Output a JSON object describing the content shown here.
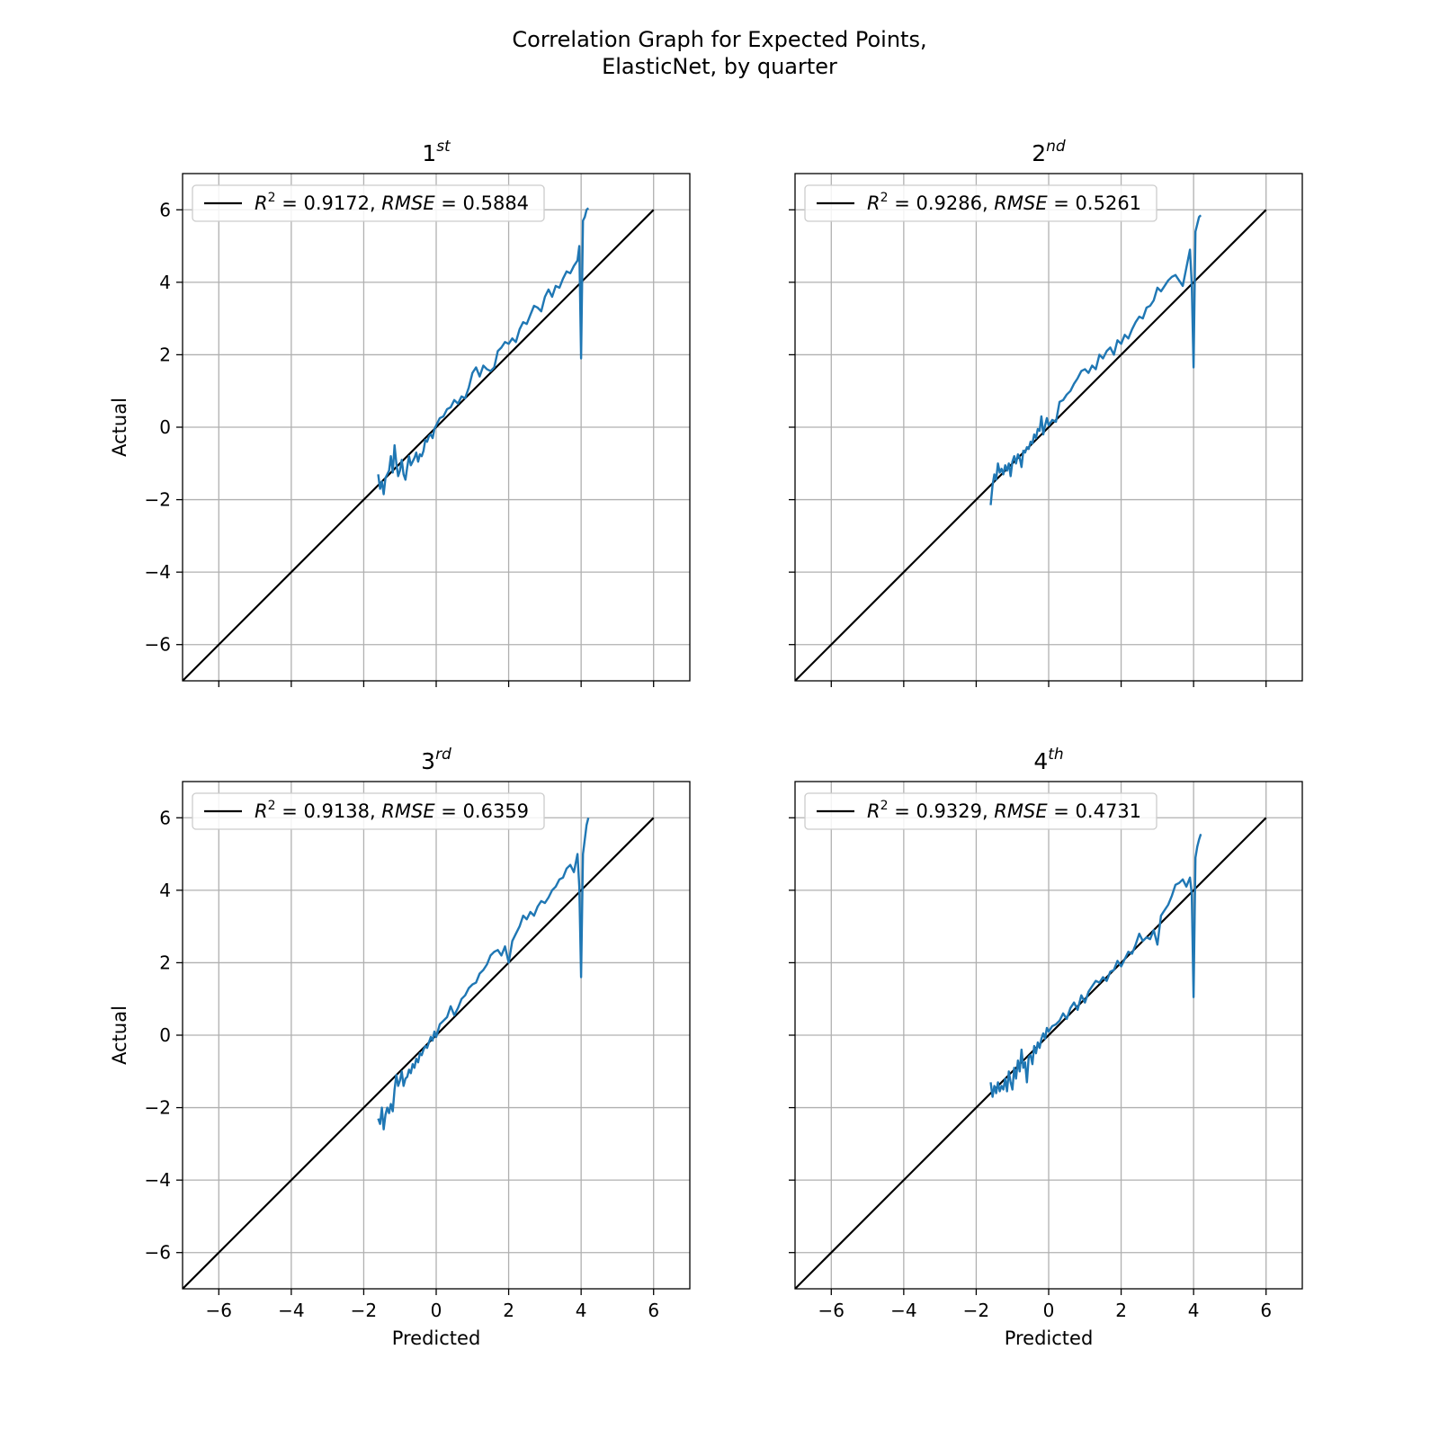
{
  "figure": {
    "title_line1": "Correlation Graph for Expected Points,",
    "title_line2": "ElasticNet, by quarter"
  },
  "chart_data": [
    {
      "type": "line",
      "title": "1st",
      "title_main": "1",
      "title_sup": "st",
      "xlabel": "",
      "ylabel": "Actual",
      "xlim": [
        -7,
        7
      ],
      "ylim": [
        -7,
        7
      ],
      "ticks": [
        -6,
        -4,
        -2,
        0,
        2,
        4,
        6
      ],
      "show_xticklabels": false,
      "show_yticklabels": true,
      "grid": true,
      "legend": {
        "position": "top-left",
        "label": "R^2 = 0.9172, RMSE = 0.5884",
        "r2": "0.9172",
        "rmse": "0.5884"
      },
      "series": [
        {
          "role": "reference",
          "color": "#000000",
          "x": [
            -7,
            6
          ],
          "y": [
            -7,
            6
          ]
        },
        {
          "role": "observed",
          "color": "#1f77b4",
          "x": [
            -1.6,
            -1.55,
            -1.5,
            -1.45,
            -1.4,
            -1.35,
            -1.3,
            -1.25,
            -1.2,
            -1.15,
            -1.1,
            -1.05,
            -1.0,
            -0.95,
            -0.9,
            -0.85,
            -0.8,
            -0.75,
            -0.7,
            -0.65,
            -0.6,
            -0.55,
            -0.5,
            -0.45,
            -0.4,
            -0.35,
            -0.3,
            -0.25,
            -0.2,
            -0.15,
            -0.1,
            -0.05,
            0.0,
            0.1,
            0.2,
            0.3,
            0.4,
            0.5,
            0.6,
            0.7,
            0.8,
            0.9,
            1.0,
            1.1,
            1.2,
            1.3,
            1.4,
            1.5,
            1.6,
            1.7,
            1.8,
            1.9,
            2.0,
            2.1,
            2.2,
            2.3,
            2.4,
            2.5,
            2.6,
            2.7,
            2.8,
            2.9,
            3.0,
            3.1,
            3.2,
            3.3,
            3.4,
            3.5,
            3.6,
            3.7,
            3.8,
            3.9,
            3.95,
            4.0,
            4.05,
            4.1,
            4.15,
            4.2
          ],
          "y": [
            -1.3,
            -1.7,
            -1.5,
            -1.85,
            -1.4,
            -1.3,
            -1.2,
            -0.8,
            -1.25,
            -0.5,
            -1.0,
            -1.35,
            -1.2,
            -0.9,
            -1.3,
            -1.45,
            -1.1,
            -0.8,
            -1.05,
            -0.95,
            -0.85,
            -0.7,
            -0.95,
            -0.75,
            -0.8,
            -0.65,
            -0.35,
            -0.4,
            -0.25,
            -0.2,
            -0.3,
            -0.05,
            0.05,
            0.25,
            0.3,
            0.5,
            0.55,
            0.75,
            0.65,
            0.85,
            0.8,
            1.1,
            1.5,
            1.65,
            1.4,
            1.7,
            1.6,
            1.55,
            1.65,
            2.1,
            2.2,
            2.35,
            2.3,
            2.45,
            2.35,
            2.7,
            2.9,
            2.85,
            3.1,
            3.35,
            3.3,
            3.2,
            3.6,
            3.8,
            3.6,
            3.9,
            3.85,
            4.1,
            4.3,
            4.25,
            4.45,
            4.6,
            5.0,
            1.9,
            5.7,
            5.8,
            6.0,
            6.05
          ]
        }
      ]
    },
    {
      "type": "line",
      "title": "2nd",
      "title_main": "2",
      "title_sup": "nd",
      "xlabel": "",
      "ylabel": "",
      "xlim": [
        -7,
        7
      ],
      "ylim": [
        -7,
        7
      ],
      "ticks": [
        -6,
        -4,
        -2,
        0,
        2,
        4,
        6
      ],
      "show_xticklabels": false,
      "show_yticklabels": false,
      "grid": true,
      "legend": {
        "position": "top-left",
        "label": "R^2 = 0.9286, RMSE = 0.5261",
        "r2": "0.9286",
        "rmse": "0.5261"
      },
      "series": [
        {
          "role": "reference",
          "color": "#000000",
          "x": [
            -7,
            6
          ],
          "y": [
            -7,
            6
          ]
        },
        {
          "role": "observed",
          "color": "#1f77b4",
          "x": [
            -1.6,
            -1.55,
            -1.5,
            -1.45,
            -1.4,
            -1.35,
            -1.3,
            -1.25,
            -1.2,
            -1.15,
            -1.1,
            -1.05,
            -1.0,
            -0.95,
            -0.9,
            -0.85,
            -0.8,
            -0.75,
            -0.7,
            -0.65,
            -0.6,
            -0.55,
            -0.5,
            -0.45,
            -0.4,
            -0.35,
            -0.3,
            -0.25,
            -0.2,
            -0.15,
            -0.1,
            -0.05,
            0.0,
            0.1,
            0.2,
            0.3,
            0.4,
            0.5,
            0.6,
            0.7,
            0.8,
            0.9,
            1.0,
            1.1,
            1.2,
            1.3,
            1.4,
            1.5,
            1.6,
            1.7,
            1.8,
            1.9,
            2.0,
            2.1,
            2.2,
            2.3,
            2.4,
            2.5,
            2.6,
            2.7,
            2.8,
            2.9,
            3.0,
            3.1,
            3.2,
            3.3,
            3.4,
            3.5,
            3.6,
            3.7,
            3.8,
            3.9,
            3.95,
            4.0,
            4.05,
            4.1,
            4.15,
            4.2
          ],
          "y": [
            -2.15,
            -1.6,
            -1.3,
            -1.45,
            -1.0,
            -1.25,
            -1.15,
            -1.3,
            -1.05,
            -1.2,
            -1.0,
            -1.35,
            -0.95,
            -0.8,
            -1.0,
            -0.75,
            -0.85,
            -1.1,
            -0.65,
            -0.7,
            -0.55,
            -0.6,
            -0.4,
            -0.45,
            -0.2,
            -0.3,
            -0.05,
            -0.1,
            0.3,
            -0.2,
            0.05,
            0.25,
            0.05,
            0.2,
            0.15,
            0.7,
            0.75,
            0.9,
            1.0,
            1.2,
            1.35,
            1.55,
            1.6,
            1.5,
            1.7,
            1.6,
            2.0,
            1.9,
            2.1,
            2.2,
            2.0,
            2.4,
            2.3,
            2.55,
            2.45,
            2.7,
            2.9,
            3.05,
            3.0,
            3.3,
            3.35,
            3.5,
            3.85,
            3.75,
            3.9,
            4.05,
            4.15,
            4.2,
            4.05,
            3.9,
            4.4,
            4.9,
            3.95,
            1.65,
            5.4,
            5.6,
            5.8,
            5.85
          ]
        }
      ]
    },
    {
      "type": "line",
      "title": "3rd",
      "title_main": "3",
      "title_sup": "rd",
      "xlabel": "Predicted",
      "ylabel": "Actual",
      "xlim": [
        -7,
        7
      ],
      "ylim": [
        -7,
        7
      ],
      "ticks": [
        -6,
        -4,
        -2,
        0,
        2,
        4,
        6
      ],
      "show_xticklabels": true,
      "show_yticklabels": true,
      "grid": true,
      "legend": {
        "position": "top-left",
        "label": "R^2 = 0.9138, RMSE = 0.6359",
        "r2": "0.9138",
        "rmse": "0.6359"
      },
      "series": [
        {
          "role": "reference",
          "color": "#000000",
          "x": [
            -7,
            6
          ],
          "y": [
            -7,
            6
          ]
        },
        {
          "role": "observed",
          "color": "#1f77b4",
          "x": [
            -1.6,
            -1.55,
            -1.5,
            -1.45,
            -1.4,
            -1.35,
            -1.3,
            -1.25,
            -1.2,
            -1.15,
            -1.1,
            -1.05,
            -1.0,
            -0.95,
            -0.9,
            -0.85,
            -0.8,
            -0.75,
            -0.7,
            -0.65,
            -0.6,
            -0.55,
            -0.5,
            -0.45,
            -0.4,
            -0.35,
            -0.3,
            -0.25,
            -0.2,
            -0.15,
            -0.1,
            -0.05,
            0.0,
            0.1,
            0.2,
            0.3,
            0.4,
            0.5,
            0.6,
            0.7,
            0.8,
            0.9,
            1.0,
            1.1,
            1.2,
            1.3,
            1.4,
            1.5,
            1.6,
            1.7,
            1.8,
            1.9,
            2.0,
            2.1,
            2.2,
            2.3,
            2.4,
            2.5,
            2.6,
            2.7,
            2.8,
            2.9,
            3.0,
            3.1,
            3.2,
            3.3,
            3.4,
            3.5,
            3.6,
            3.7,
            3.8,
            3.9,
            3.95,
            4.0,
            4.05,
            4.1,
            4.15,
            4.2
          ],
          "y": [
            -2.3,
            -2.45,
            -2.0,
            -2.6,
            -2.2,
            -2.0,
            -2.15,
            -1.9,
            -2.1,
            -1.5,
            -1.1,
            -1.4,
            -1.25,
            -1.0,
            -1.4,
            -1.2,
            -1.15,
            -0.95,
            -1.05,
            -0.8,
            -0.9,
            -0.65,
            -0.75,
            -0.5,
            -0.55,
            -0.4,
            -0.3,
            -0.35,
            -0.2,
            -0.05,
            -0.15,
            0.1,
            -0.05,
            0.3,
            0.4,
            0.5,
            0.8,
            0.55,
            0.75,
            1.0,
            1.1,
            1.3,
            1.4,
            1.45,
            1.7,
            1.8,
            1.95,
            2.2,
            2.3,
            2.35,
            2.2,
            2.45,
            2.0,
            2.6,
            2.8,
            3.0,
            3.3,
            3.2,
            3.4,
            3.3,
            3.55,
            3.7,
            3.65,
            3.8,
            4.0,
            4.1,
            4.3,
            4.35,
            4.6,
            4.7,
            4.5,
            5.0,
            4.1,
            1.6,
            5.0,
            5.4,
            5.8,
            6.0
          ]
        }
      ]
    },
    {
      "type": "line",
      "title": "4th",
      "title_main": "4",
      "title_sup": "th",
      "xlabel": "Predicted",
      "ylabel": "",
      "xlim": [
        -7,
        7
      ],
      "ylim": [
        -7,
        7
      ],
      "ticks": [
        -6,
        -4,
        -2,
        0,
        2,
        4,
        6
      ],
      "show_xticklabels": true,
      "show_yticklabels": false,
      "grid": true,
      "legend": {
        "position": "top-left",
        "label": "R^2 = 0.9329, RMSE = 0.4731",
        "r2": "0.9329",
        "rmse": "0.4731"
      },
      "series": [
        {
          "role": "reference",
          "color": "#000000",
          "x": [
            -7,
            6
          ],
          "y": [
            -7,
            6
          ]
        },
        {
          "role": "observed",
          "color": "#1f77b4",
          "x": [
            -1.6,
            -1.55,
            -1.5,
            -1.45,
            -1.4,
            -1.35,
            -1.3,
            -1.25,
            -1.2,
            -1.15,
            -1.1,
            -1.05,
            -1.0,
            -0.95,
            -0.9,
            -0.85,
            -0.8,
            -0.75,
            -0.7,
            -0.65,
            -0.6,
            -0.55,
            -0.5,
            -0.45,
            -0.4,
            -0.35,
            -0.3,
            -0.25,
            -0.2,
            -0.15,
            -0.1,
            -0.05,
            0.0,
            0.1,
            0.2,
            0.3,
            0.4,
            0.5,
            0.6,
            0.7,
            0.8,
            0.9,
            1.0,
            1.1,
            1.2,
            1.3,
            1.4,
            1.5,
            1.6,
            1.7,
            1.8,
            1.9,
            2.0,
            2.1,
            2.2,
            2.3,
            2.4,
            2.5,
            2.6,
            2.7,
            2.8,
            2.9,
            3.0,
            3.1,
            3.2,
            3.3,
            3.4,
            3.5,
            3.6,
            3.7,
            3.8,
            3.9,
            3.95,
            4.0,
            4.05,
            4.1,
            4.15,
            4.2
          ],
          "y": [
            -1.3,
            -1.7,
            -1.4,
            -1.6,
            -1.3,
            -1.55,
            -1.4,
            -1.5,
            -1.2,
            -1.55,
            -1.0,
            -1.3,
            -1.5,
            -0.9,
            -1.2,
            -0.7,
            -1.0,
            -0.4,
            -0.9,
            -0.75,
            -1.3,
            -0.6,
            -0.55,
            -0.8,
            -0.3,
            -0.5,
            -0.2,
            -0.35,
            -0.1,
            0.05,
            -0.1,
            0.2,
            0.1,
            0.25,
            0.3,
            0.4,
            0.6,
            0.45,
            0.75,
            0.9,
            0.7,
            1.1,
            0.9,
            1.2,
            1.35,
            1.5,
            1.45,
            1.6,
            1.5,
            1.75,
            1.8,
            2.05,
            1.9,
            2.1,
            2.3,
            2.25,
            2.5,
            2.8,
            2.6,
            2.7,
            2.65,
            2.9,
            2.5,
            3.3,
            3.45,
            3.6,
            3.85,
            4.15,
            4.2,
            4.3,
            4.1,
            4.35,
            3.9,
            1.05,
            4.9,
            5.2,
            5.4,
            5.55
          ]
        }
      ]
    }
  ]
}
